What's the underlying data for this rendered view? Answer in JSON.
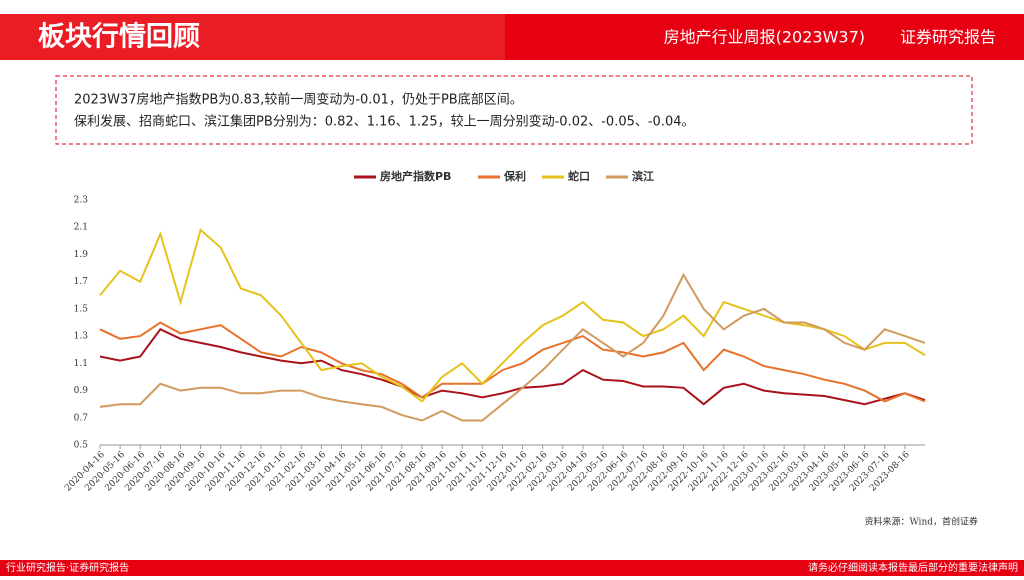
{
  "header": {
    "title": "板块行情回顾",
    "report": "房地产行业周报(2023W37)",
    "kind": "证券研究报告"
  },
  "summary": [
    "2023W37房地产指数PB为0.83,较前一周变动为-0.01，仍处于PB底部区间。",
    "保利发展、招商蛇口、滨江集团PB分别为：0.82、1.16、1.25，较上一周分别变动-0.02、-0.05、-0.04。"
  ],
  "chart_data": {
    "type": "line",
    "categories": [
      "2020-04-16",
      "2020-05-16",
      "2020-06-16",
      "2020-07-16",
      "2020-08-16",
      "2020-09-16",
      "2020-10-16",
      "2020-11-16",
      "2020-12-16",
      "2021-01-16",
      "2021-02-16",
      "2021-03-16",
      "2021-04-16",
      "2021-05-16",
      "2021-06-16",
      "2021-07-16",
      "2021-08-16",
      "2021-09-16",
      "2021-10-16",
      "2021-11-16",
      "2021-12-16",
      "2022-01-16",
      "2022-02-16",
      "2022-03-16",
      "2022-04-16",
      "2022-05-16",
      "2022-06-16",
      "2022-07-16",
      "2022-08-16",
      "2022-09-16",
      "2022-10-16",
      "2022-11-16",
      "2022-12-16",
      "2023-01-16",
      "2023-02-16",
      "2023-03-16",
      "2023-04-16",
      "2023-05-16",
      "2023-06-16",
      "2023-07-16",
      "2023-08-16",
      null
    ],
    "series": [
      {
        "name": "房地产指数PB",
        "color": "#a8131b",
        "values": [
          1.15,
          1.12,
          1.15,
          1.35,
          1.28,
          1.25,
          1.22,
          1.18,
          1.15,
          1.12,
          1.1,
          1.12,
          1.05,
          1.02,
          0.98,
          0.93,
          0.85,
          0.9,
          0.88,
          0.85,
          0.88,
          0.92,
          0.93,
          0.95,
          1.05,
          0.98,
          0.97,
          0.93,
          0.93,
          0.92,
          0.8,
          0.92,
          0.95,
          0.9,
          0.88,
          0.87,
          0.86,
          0.83,
          0.8,
          0.84,
          0.88,
          0.83
        ]
      },
      {
        "name": "保利",
        "color": "#e8722a",
        "values": [
          1.35,
          1.28,
          1.3,
          1.4,
          1.32,
          1.35,
          1.38,
          1.28,
          1.18,
          1.15,
          1.22,
          1.18,
          1.1,
          1.05,
          1.02,
          0.95,
          0.85,
          0.95,
          0.95,
          0.95,
          1.05,
          1.1,
          1.2,
          1.25,
          1.3,
          1.2,
          1.18,
          1.15,
          1.18,
          1.25,
          1.05,
          1.2,
          1.15,
          1.08,
          1.05,
          1.02,
          0.98,
          0.95,
          0.9,
          0.82,
          0.88,
          0.82
        ]
      },
      {
        "name": "蛇口",
        "color": "#e6c21a",
        "values": [
          1.6,
          1.78,
          1.7,
          2.05,
          1.55,
          2.08,
          1.95,
          1.65,
          1.6,
          1.45,
          1.25,
          1.05,
          1.08,
          1.1,
          1.0,
          0.93,
          0.82,
          1.0,
          1.1,
          0.95,
          1.1,
          1.25,
          1.38,
          1.45,
          1.55,
          1.42,
          1.4,
          1.3,
          1.35,
          1.45,
          1.3,
          1.55,
          1.5,
          1.45,
          1.4,
          1.38,
          1.35,
          1.3,
          1.2,
          1.25,
          1.25,
          1.16
        ]
      },
      {
        "name": "滨江",
        "color": "#d29a5e",
        "values": [
          0.78,
          0.8,
          0.8,
          0.95,
          0.9,
          0.92,
          0.92,
          0.88,
          0.88,
          0.9,
          0.9,
          0.85,
          0.82,
          0.8,
          0.78,
          0.72,
          0.68,
          0.75,
          0.68,
          0.68,
          0.8,
          0.92,
          1.05,
          1.2,
          1.35,
          1.25,
          1.15,
          1.25,
          1.45,
          1.75,
          1.5,
          1.35,
          1.45,
          1.5,
          1.4,
          1.4,
          1.35,
          1.25,
          1.2,
          1.35,
          1.3,
          1.25
        ]
      }
    ],
    "ylim": [
      0.5,
      2.3
    ],
    "yticks": [
      0.5,
      0.7,
      0.9,
      1.1,
      1.3,
      1.5,
      1.7,
      1.9,
      2.1,
      2.3
    ],
    "legend": "top"
  },
  "source": "资料来源：Wind，首创证券",
  "footer": {
    "left": "行业研究报告·证券研究报告",
    "right": "请务必仔细阅读本报告最后部分的重要法律声明"
  }
}
